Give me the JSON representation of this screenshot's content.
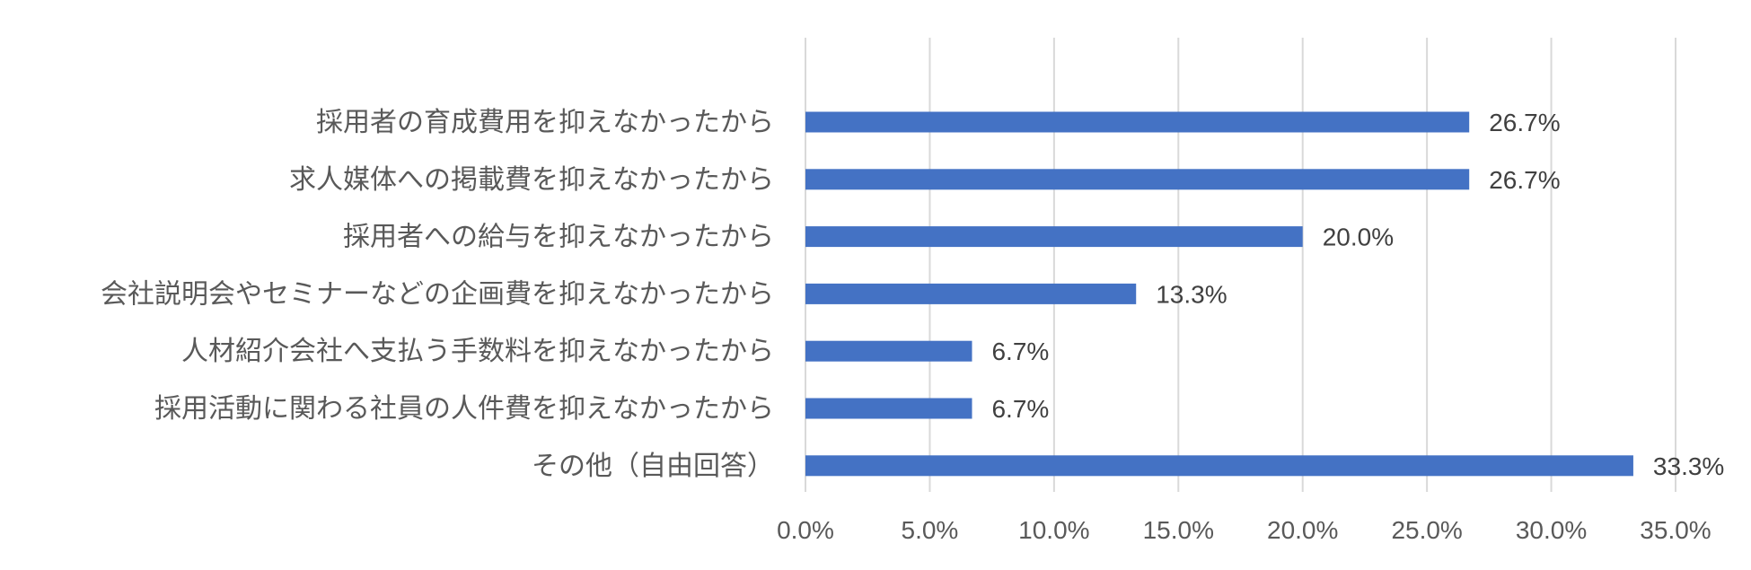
{
  "chart_data": {
    "type": "bar",
    "orientation": "horizontal",
    "title": "",
    "xlabel": "",
    "ylabel": "",
    "categories": [
      "採用者の育成費用を抑えなかったから",
      "求人媒体への掲載費を抑えなかったから",
      "採用者への給与を抑えなかったから",
      "会社説明会やセミナーなどの企画費を抑えなかったから",
      "人材紹介会社へ支払う手数料を抑えなかったから",
      "採用活動に関わる社員の人件費を抑えなかったから",
      "その他（自由回答）"
    ],
    "values": [
      26.7,
      26.7,
      20.0,
      13.3,
      6.7,
      6.7,
      33.3
    ],
    "value_labels": [
      "26.7%",
      "26.7%",
      "20.0%",
      "13.3%",
      "6.7%",
      "6.7%",
      "33.3%"
    ],
    "xlim": [
      0,
      35
    ],
    "xticks": [
      "0.0%",
      "5.0%",
      "10.0%",
      "15.0%",
      "20.0%",
      "25.0%",
      "30.0%",
      "35.0%"
    ],
    "grid": true,
    "legend": "none",
    "bar_color": "#4472C4"
  }
}
